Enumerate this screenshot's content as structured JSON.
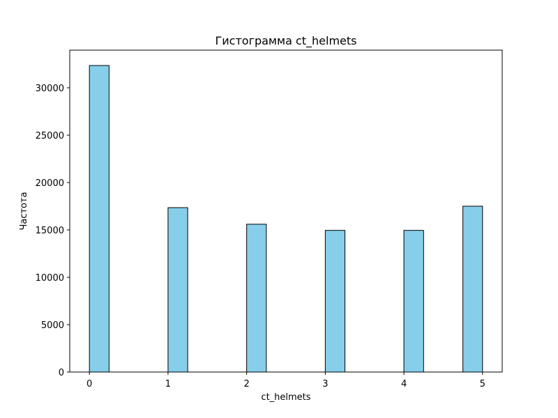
{
  "chart_data": {
    "type": "bar",
    "title": "Гистограмма ct_helmets",
    "xlabel": "ct_helmets",
    "ylabel": "Частота",
    "bar_color": "#87CEEB",
    "edge_color": "#000000",
    "bin_width": 0.25,
    "bins": [
      {
        "x_start": 0.0,
        "value": 32350
      },
      {
        "x_start": 1.0,
        "value": 17350
      },
      {
        "x_start": 2.0,
        "value": 15600
      },
      {
        "x_start": 3.0,
        "value": 14950
      },
      {
        "x_start": 4.0,
        "value": 14950
      },
      {
        "x_start": 4.75,
        "value": 17500
      }
    ],
    "xlim": [
      -0.25,
      5.25
    ],
    "ylim": [
      0,
      33970
    ],
    "x_ticks": [
      0,
      1,
      2,
      3,
      4,
      5
    ],
    "x_tick_labels": [
      "0",
      "1",
      "2",
      "3",
      "4",
      "5"
    ],
    "y_ticks": [
      0,
      5000,
      10000,
      15000,
      20000,
      25000,
      30000
    ],
    "y_tick_labels": [
      "0",
      "5000",
      "10000",
      "15000",
      "20000",
      "25000",
      "30000"
    ],
    "grid": false,
    "legend": "none"
  }
}
